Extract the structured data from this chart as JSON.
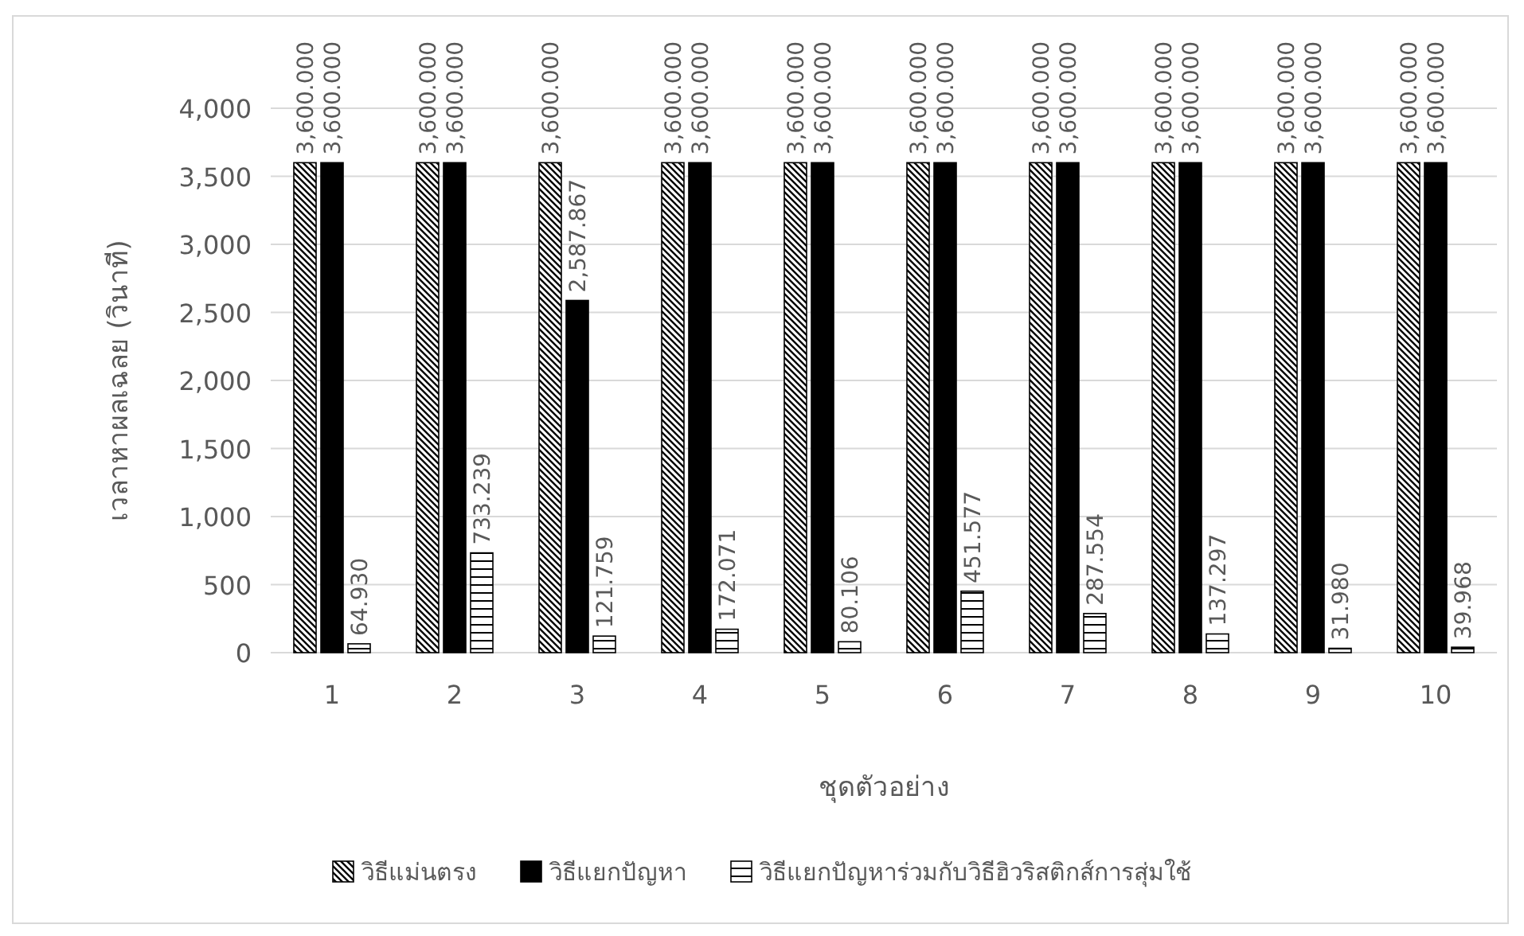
{
  "chart_data": {
    "type": "bar",
    "categories": [
      "1",
      "2",
      "3",
      "4",
      "5",
      "6",
      "7",
      "8",
      "9",
      "10"
    ],
    "xlabel": "ชุดตัวอย่าง",
    "ylabel": "เวลาหาผลเฉลย (วินาที)",
    "ylim": [
      0,
      4000
    ],
    "yticks": [
      0,
      500,
      {
        "value": 1000,
        "label": "1,000"
      },
      {
        "value": 1500,
        "label": "1,500"
      },
      {
        "value": 2000,
        "label": "2,000"
      },
      {
        "value": 2500,
        "label": "2,500"
      },
      {
        "value": 3000,
        "label": "3,000"
      },
      {
        "value": 3500,
        "label": "3,500"
      },
      {
        "value": 4000,
        "label": "4,000"
      }
    ],
    "grid": "y",
    "legend": "bottom",
    "series": [
      {
        "name": "วิธีแม่นตรง",
        "color": "#000000",
        "values": [
          3600,
          3600,
          3600,
          3600,
          3600,
          3600,
          3600,
          3600,
          3600,
          3600
        ],
        "value_labels": [
          "3,600.000",
          "3,600.000",
          "3,600.000",
          "3,600.000",
          "3,600.000",
          "3,600.000",
          "3,600.000",
          "3,600.000",
          "3,600.000",
          "3,600.000"
        ]
      },
      {
        "name": "วิธีแยกปัญหา",
        "color": "#000000",
        "values": [
          3600,
          3600,
          2587.867,
          3600,
          3600,
          3600,
          3600,
          3600,
          3600,
          3600
        ],
        "value_labels": [
          "3,600.000",
          "3,600.000",
          "2,587.867",
          "3,600.000",
          "3,600.000",
          "3,600.000",
          "3,600.000",
          "3,600.000",
          "3,600.000",
          "3,600.000"
        ]
      },
      {
        "name": "วิธีแยกปัญหาร่วมกับวิธีฮิวริสติกส์การสุ่มใช้",
        "color": "#000000",
        "values": [
          64.93,
          733.239,
          121.759,
          172.071,
          80.106,
          451.577,
          287.554,
          137.297,
          31.98,
          39.968
        ],
        "value_labels": [
          "64.930",
          "733.239",
          "121.759",
          "172.071",
          "80.106",
          "451.577",
          "287.554",
          "137.297",
          "31.980",
          "39.968"
        ]
      }
    ]
  }
}
